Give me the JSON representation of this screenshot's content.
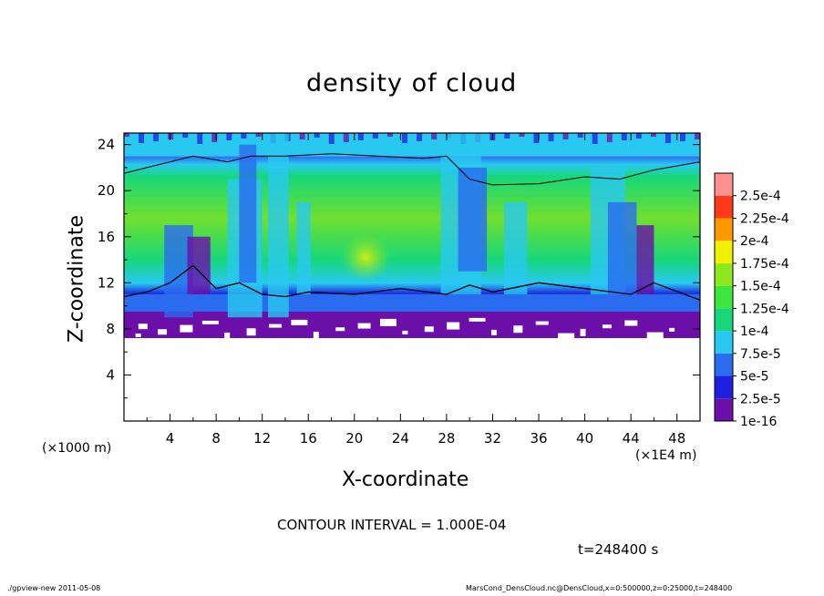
{
  "chart_data": {
    "type": "heatmap",
    "title": "density of cloud",
    "xlabel": "X-coordinate",
    "ylabel": "Z-coordinate",
    "x_unit_label": "(×1E4 m)",
    "y_unit_label": "(×1000 m)",
    "xlim": [
      0,
      50
    ],
    "ylim": [
      0,
      25
    ],
    "x_ticks": [
      4,
      8,
      12,
      16,
      20,
      24,
      28,
      32,
      36,
      40,
      44,
      48
    ],
    "y_ticks": [
      4,
      8,
      12,
      16,
      20,
      24
    ],
    "colorbar": {
      "levels": [
        "1e-16",
        "2.5e-5",
        "5e-5",
        "7.5e-5",
        "1e-4",
        "1.25e-4",
        "1.5e-4",
        "1.75e-4",
        "2e-4",
        "2.25e-4",
        "2.5e-4"
      ],
      "colors": [
        "#6b0fa8",
        "#1f1fe0",
        "#2a6cf0",
        "#29c8f0",
        "#17d77a",
        "#3ce63c",
        "#8ee81e",
        "#f0f000",
        "#ff9900",
        "#ff3a1a",
        "#ff9090"
      ]
    },
    "contour_interval_text": "CONTOUR INTERVAL = 1.000E-04",
    "time_text": "t=248400 s",
    "cloud_layers": [
      {
        "level": "1e-16",
        "z_min": 7.2,
        "z_max": 9.5
      },
      {
        "level": "5e-5",
        "z_min": 9.0,
        "z_max": 11.0
      },
      {
        "level": "1e-4",
        "z_min": 11.0,
        "z_max": 23.0
      },
      {
        "level": "7.5e-5",
        "z_min": 23.0,
        "z_max": 25.0
      }
    ]
  },
  "footer": {
    "left": "./gpview-new  2011-05-08",
    "right": "MarsCond_DensCloud.nc@DensCloud,x=0:500000,z=0:25000,t=248400"
  }
}
